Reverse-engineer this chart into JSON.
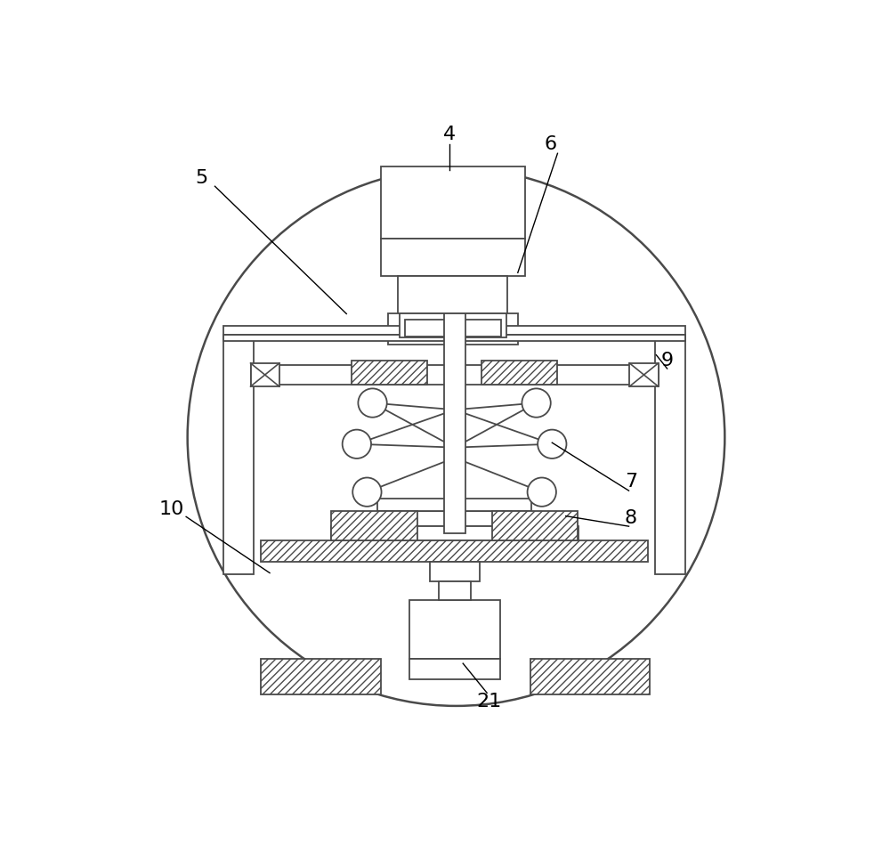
{
  "bg": "#ffffff",
  "lc": "#4a4a4a",
  "lw": 1.3,
  "fig_w": 10.0,
  "fig_h": 9.48
}
